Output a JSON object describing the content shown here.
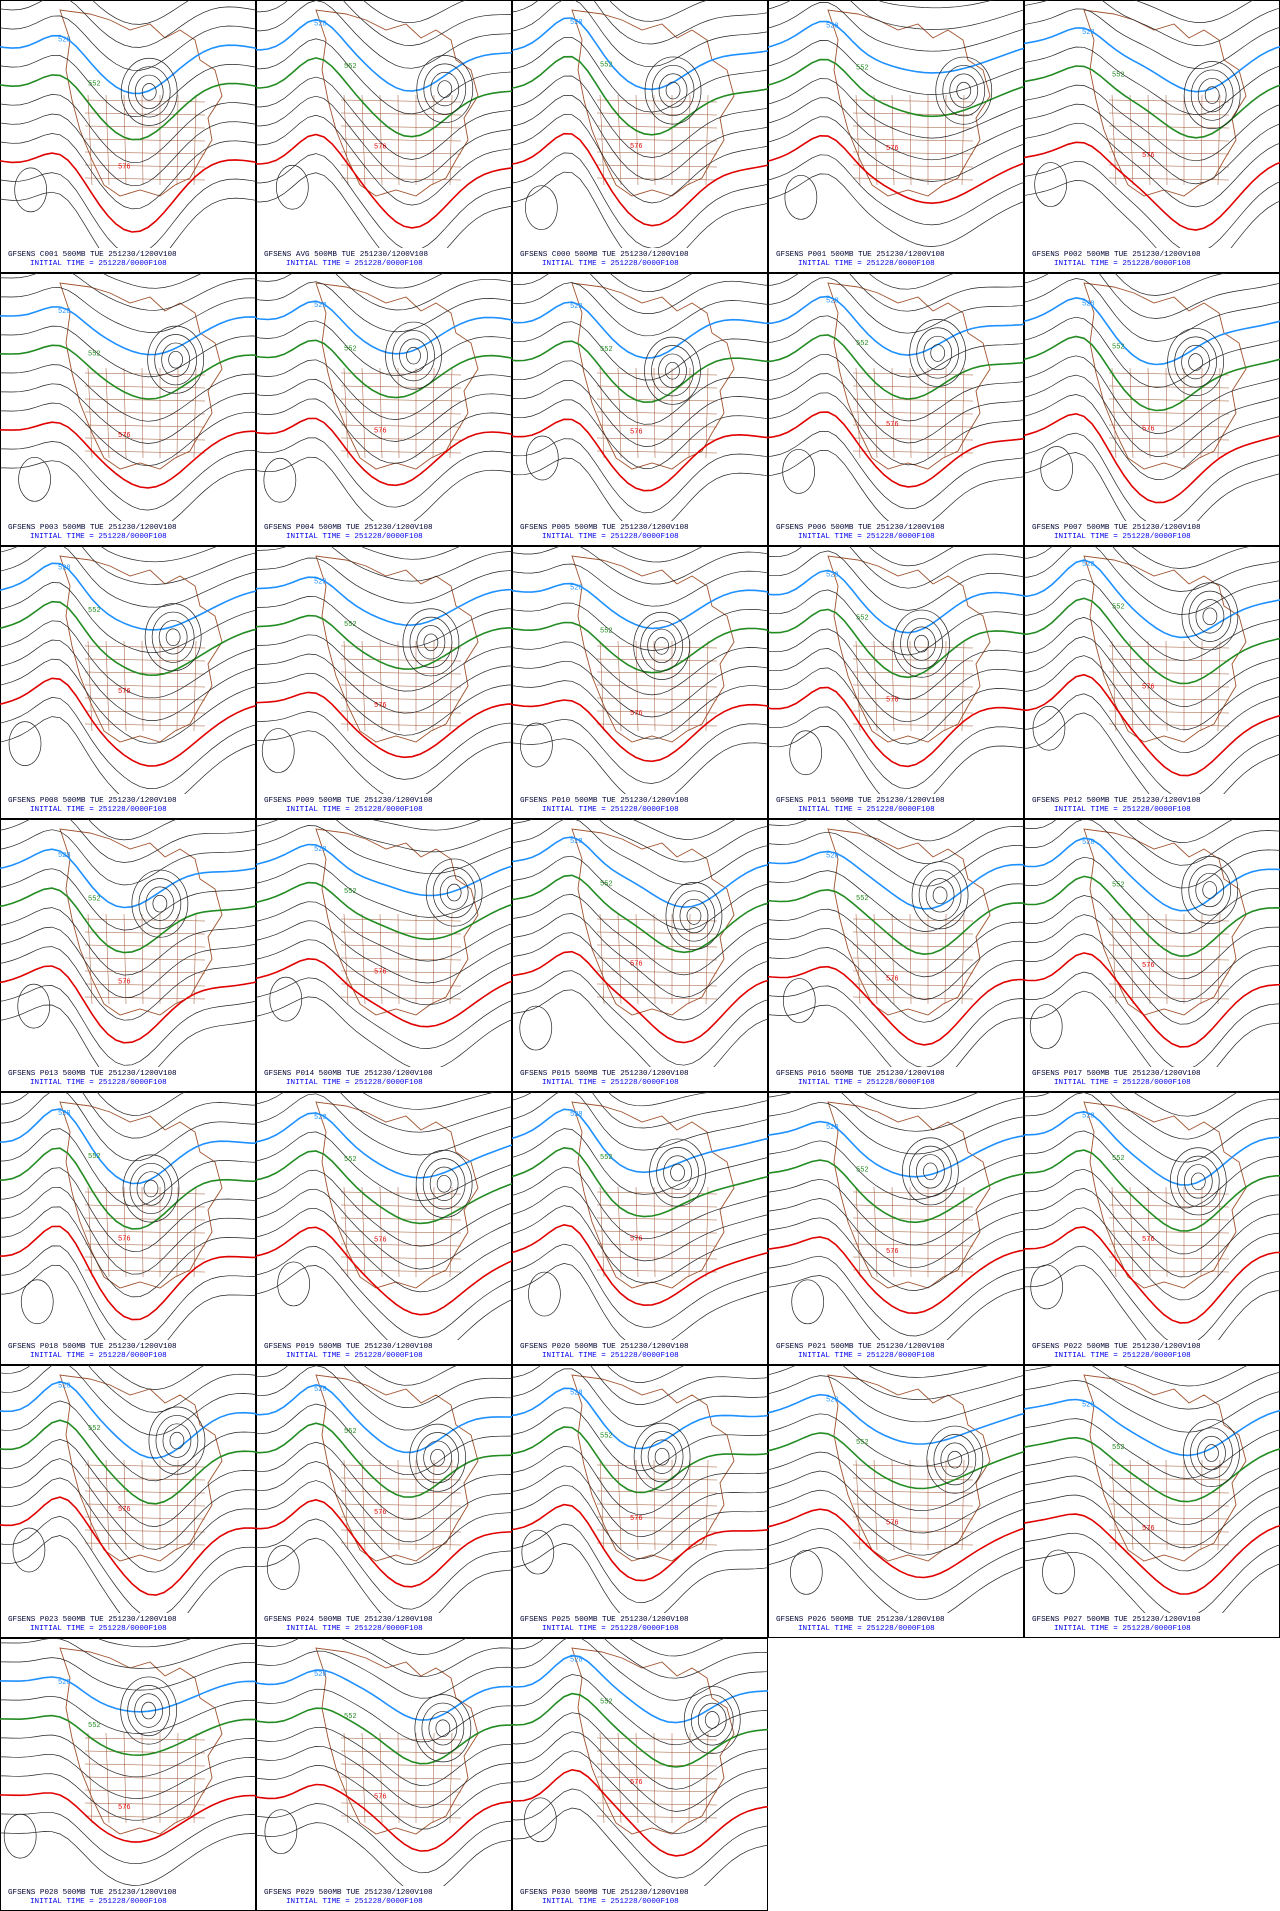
{
  "contour_labels": [
    "528",
    "552",
    "576"
  ],
  "panels": [
    {
      "title": "GFSENS C001 500MB TUE 251230/1200V108",
      "subtitle": "INITIAL TIME = 251228/0000F108"
    },
    {
      "title": "GFSENS AVG 500MB TUE 251230/1200V108",
      "subtitle": "INITIAL TIME = 251228/0000F108"
    },
    {
      "title": "GFSENS C000 500MB TUE 251230/1200V108",
      "subtitle": "INITIAL TIME = 251228/0000F108"
    },
    {
      "title": "GFSENS P001 500MB TUE 251230/1200V108",
      "subtitle": "INITIAL TIME = 251228/0000F108"
    },
    {
      "title": "GFSENS P002 500MB TUE 251230/1200V108",
      "subtitle": "INITIAL TIME = 251228/0000F108"
    },
    {
      "title": "GFSENS P003 500MB TUE 251230/1200V108",
      "subtitle": "INITIAL TIME = 251228/0000F108"
    },
    {
      "title": "GFSENS P004 500MB TUE 251230/1200V108",
      "subtitle": "INITIAL TIME = 251228/0000F108"
    },
    {
      "title": "GFSENS P005 500MB TUE 251230/1200V108",
      "subtitle": "INITIAL TIME = 251228/0000F108"
    },
    {
      "title": "GFSENS P006 500MB TUE 251230/1200V108",
      "subtitle": "INITIAL TIME = 251228/0000F108"
    },
    {
      "title": "GFSENS P007 500MB TUE 251230/1200V108",
      "subtitle": "INITIAL TIME = 251228/0000F108"
    },
    {
      "title": "GFSENS P008 500MB TUE 251230/1200V108",
      "subtitle": "INITIAL TIME = 251228/0000F108"
    },
    {
      "title": "GFSENS P009 500MB TUE 251230/1200V108",
      "subtitle": "INITIAL TIME = 251228/0000F108"
    },
    {
      "title": "GFSENS P010 500MB TUE 251230/1200V108",
      "subtitle": "INITIAL TIME = 251228/0000F108"
    },
    {
      "title": "GFSENS P011 500MB TUE 251230/1200V108",
      "subtitle": "INITIAL TIME = 251228/0000F108"
    },
    {
      "title": "GFSENS P012 500MB TUE 251230/1200V108",
      "subtitle": "INITIAL TIME = 251228/0000F108"
    },
    {
      "title": "GFSENS P013 500MB TUE 251230/1200V108",
      "subtitle": "INITIAL TIME = 251228/0000F108"
    },
    {
      "title": "GFSENS P014 500MB TUE 251230/1200V108",
      "subtitle": "INITIAL TIME = 251228/0000F108"
    },
    {
      "title": "GFSENS P015 500MB TUE 251230/1200V108",
      "subtitle": "INITIAL TIME = 251228/0000F108"
    },
    {
      "title": "GFSENS P016 500MB TUE 251230/1200V108",
      "subtitle": "INITIAL TIME = 251228/0000F108"
    },
    {
      "title": "GFSENS P017 500MB TUE 251230/1200V108",
      "subtitle": "INITIAL TIME = 251228/0000F108"
    },
    {
      "title": "GFSENS P018 500MB TUE 251230/1200V108",
      "subtitle": "INITIAL TIME = 251228/0000F108"
    },
    {
      "title": "GFSENS P019 500MB TUE 251230/1200V108",
      "subtitle": "INITIAL TIME = 251228/0000F108"
    },
    {
      "title": "GFSENS P020 500MB TUE 251230/1200V108",
      "subtitle": "INITIAL TIME = 251228/0000F108"
    },
    {
      "title": "GFSENS P021 500MB TUE 251230/1200V108",
      "subtitle": "INITIAL TIME = 251228/0000F108"
    },
    {
      "title": "GFSENS P022 500MB TUE 251230/1200V108",
      "subtitle": "INITIAL TIME = 251228/0000F108"
    },
    {
      "title": "GFSENS P023 500MB TUE 251230/1200V108",
      "subtitle": "INITIAL TIME = 251228/0000F108"
    },
    {
      "title": "GFSENS P024 500MB TUE 251230/1200V108",
      "subtitle": "INITIAL TIME = 251228/0000F108"
    },
    {
      "title": "GFSENS P025 500MB TUE 251230/1200V108",
      "subtitle": "INITIAL TIME = 251228/0000F108"
    },
    {
      "title": "GFSENS P026 500MB TUE 251230/1200V108",
      "subtitle": "INITIAL TIME = 251228/0000F108"
    },
    {
      "title": "GFSENS P027 500MB TUE 251230/1200V108",
      "subtitle": "INITIAL TIME = 251228/0000F108"
    },
    {
      "title": "GFSENS P028 500MB TUE 251230/1200V108",
      "subtitle": "INITIAL TIME = 251228/0000F108"
    },
    {
      "title": "GFSENS P029 500MB TUE 251230/1200V108",
      "subtitle": "INITIAL TIME = 251228/0000F108"
    },
    {
      "title": "GFSENS P030 500MB TUE 251230/1200V108",
      "subtitle": "INITIAL TIME = 251228/0000F108"
    }
  ]
}
